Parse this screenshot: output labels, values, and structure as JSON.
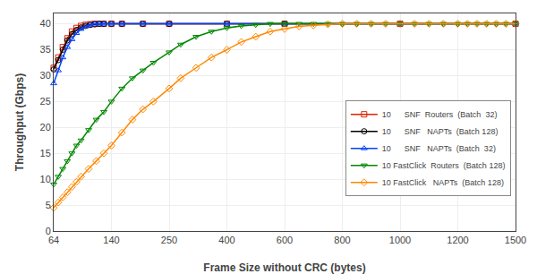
{
  "chart_data": {
    "type": "line",
    "xlabel": "Frame Size without CRC (bytes)",
    "ylabel": "Throughput (Gbps)",
    "xlim": [
      64,
      1500
    ],
    "xticks": [
      64,
      140,
      250,
      400,
      600,
      800,
      1000,
      1200,
      1500
    ],
    "ylim": [
      0,
      42
    ],
    "yticks": [
      0,
      5,
      10,
      15,
      20,
      25,
      30,
      35,
      40
    ],
    "grid": true,
    "legend": "right",
    "series": [
      {
        "name": "10      SNF  Routers  (Batch  32)",
        "color": "#dd2200",
        "marker": "square",
        "line_style": "solid",
        "x": [
          64,
          70,
          76,
          82,
          88,
          94,
          100,
          106,
          112,
          118,
          124,
          130,
          140,
          160,
          200,
          250,
          400,
          600,
          1000,
          1500
        ],
        "values": [
          31.5,
          33.5,
          35.5,
          37.2,
          38.5,
          39.2,
          39.6,
          39.8,
          39.9,
          40.0,
          40.0,
          40.0,
          40.0,
          40.0,
          40.0,
          40.0,
          40.0,
          40.0,
          40.0,
          40.0
        ]
      },
      {
        "name": "10      SNF   NAPTs  (Batch 128)",
        "color": "#000000",
        "marker": "circle",
        "line_style": "solid",
        "x": [
          64,
          70,
          76,
          82,
          88,
          94,
          100,
          106,
          112,
          118,
          124,
          130,
          140,
          160,
          200,
          250,
          400,
          600,
          1000,
          1500
        ],
        "values": [
          31.2,
          33.0,
          35.0,
          36.8,
          38.0,
          38.8,
          39.3,
          39.6,
          39.8,
          39.9,
          40.0,
          40.0,
          40.0,
          40.0,
          40.0,
          40.0,
          40.0,
          40.0,
          40.0,
          40.0
        ]
      },
      {
        "name": "10      SNF   NAPTs  (Batch  32)",
        "color": "#0044ff",
        "marker": "triangle-up",
        "line_style": "solid",
        "x": [
          64,
          70,
          76,
          82,
          88,
          94,
          100,
          106,
          112,
          118,
          124,
          130,
          140,
          160,
          200,
          250,
          400,
          600,
          1000,
          1500
        ],
        "values": [
          28.5,
          31.0,
          33.5,
          35.5,
          37.0,
          38.2,
          39.0,
          39.5,
          39.8,
          40.0,
          40.0,
          40.0,
          40.0,
          40.0,
          40.0,
          40.0,
          40.0,
          40.0,
          40.0,
          40.0
        ]
      },
      {
        "name": "10 FastClick  Routers  (Batch 128)",
        "color": "#008800",
        "marker": "triangle-down",
        "line_style": "solid",
        "x": [
          64,
          70,
          76,
          82,
          88,
          94,
          100,
          110,
          120,
          130,
          140,
          160,
          180,
          200,
          220,
          250,
          280,
          320,
          360,
          400,
          450,
          500,
          550,
          600,
          650,
          700,
          750,
          800,
          850,
          900,
          950,
          1000,
          1050,
          1100,
          1150,
          1200,
          1250,
          1300,
          1350,
          1400,
          1450,
          1500
        ],
        "values": [
          9.0,
          10.5,
          12.0,
          13.5,
          15.0,
          16.5,
          17.5,
          19.5,
          21.5,
          23.0,
          25.0,
          27.5,
          29.5,
          31.0,
          32.5,
          34.5,
          36.0,
          37.5,
          38.5,
          39.2,
          39.6,
          39.8,
          40.0,
          40.0,
          40.0,
          40.0,
          40.0,
          40.0,
          40.0,
          40.0,
          40.0,
          40.0,
          40.0,
          40.0,
          40.0,
          40.0,
          40.0,
          40.0,
          40.0,
          40.0,
          40.0,
          40.0
        ]
      },
      {
        "name": "10 FastClick   NAPTs  (Batch 128)",
        "color": "#ff8800",
        "marker": "diamond",
        "line_style": "solid",
        "x": [
          64,
          70,
          76,
          82,
          88,
          94,
          100,
          110,
          120,
          130,
          140,
          160,
          180,
          200,
          220,
          250,
          280,
          320,
          360,
          400,
          450,
          500,
          550,
          600,
          650,
          700,
          750,
          800,
          850,
          900,
          950,
          1000,
          1050,
          1100,
          1150,
          1200,
          1250,
          1300,
          1350,
          1400,
          1450,
          1500
        ],
        "values": [
          4.5,
          5.5,
          6.5,
          7.5,
          8.5,
          9.5,
          10.5,
          12.0,
          13.5,
          15.0,
          16.5,
          19.0,
          21.5,
          23.5,
          25.0,
          27.5,
          29.5,
          31.5,
          33.5,
          35.0,
          36.5,
          37.5,
          38.5,
          39.0,
          39.5,
          39.7,
          39.9,
          40.0,
          40.0,
          40.0,
          40.0,
          40.0,
          40.0,
          40.0,
          40.0,
          40.0,
          40.0,
          40.0,
          40.0,
          40.0,
          40.0,
          40.0
        ]
      }
    ]
  }
}
